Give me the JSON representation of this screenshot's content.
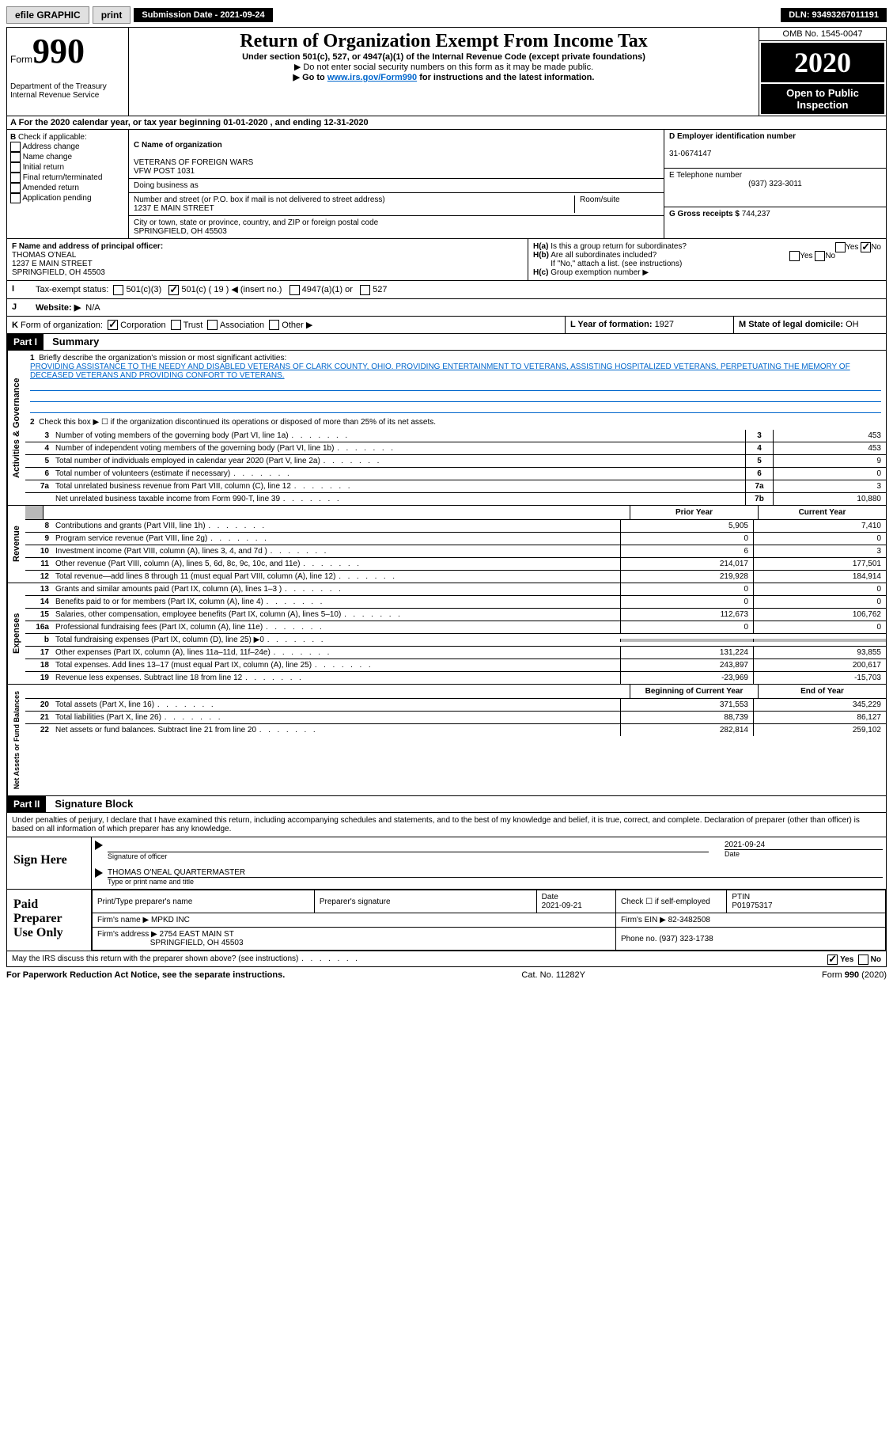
{
  "top_bar": {
    "efile_label": "efile GRAPHIC",
    "print_btn": "print",
    "submission_label": "Submission Date - 2021-09-24",
    "dln": "DLN: 93493267011191"
  },
  "header": {
    "form_label": "Form",
    "form_number": "990",
    "title": "Return of Organization Exempt From Income Tax",
    "subtitle": "Under section 501(c), 527, or 4947(a)(1) of the Internal Revenue Code (except private foundations)",
    "note1": "Do not enter social security numbers on this form as it may be made public.",
    "note2_pre": "Go to ",
    "note2_link": "www.irs.gov/Form990",
    "note2_post": " for instructions and the latest information.",
    "dept": "Department of the Treasury\nInternal Revenue Service",
    "omb": "OMB No. 1545-0047",
    "year": "2020",
    "inspect": "Open to Public Inspection"
  },
  "line_a": "For the 2020 calendar year, or tax year beginning 01-01-2020    , and ending 12-31-2020",
  "section_b": {
    "label": "Check if applicable:",
    "opts": [
      "Address change",
      "Name change",
      "Initial return",
      "Final return/terminated",
      "Amended return",
      "Application pending"
    ]
  },
  "section_c": {
    "name_label": "C Name of organization",
    "name": "VETERANS OF FOREIGN WARS\nVFW POST 1031",
    "dba_label": "Doing business as",
    "addr_label": "Number and street (or P.O. box if mail is not delivered to street address)",
    "room_label": "Room/suite",
    "addr": "1237 E MAIN STREET",
    "city_label": "City or town, state or province, country, and ZIP or foreign postal code",
    "city": "SPRINGFIELD, OH  45503"
  },
  "section_d": {
    "ein_label": "D Employer identification number",
    "ein": "31-0674147",
    "tel_label": "E Telephone number",
    "tel": "(937) 323-3011",
    "gross_label": "G Gross receipts $",
    "gross": "744,237"
  },
  "section_f": {
    "label": "F  Name and address of principal officer:",
    "name": "THOMAS O'NEAL",
    "addr1": "1237 E MAIN STREET",
    "addr2": "SPRINGFIELD, OH  45503"
  },
  "section_h": {
    "ha_label": "Is this a group return for subordinates?",
    "hb_label": "Are all subordinates included?",
    "hb_note": "If \"No,\" attach a list. (see instructions)",
    "hc_label": "Group exemption number ▶",
    "ha_ans": "No"
  },
  "line_i": {
    "label": "Tax-exempt status:",
    "opts": [
      "501(c)(3)",
      "501(c) ( 19 ) ◀ (insert no.)",
      "4947(a)(1) or",
      "527"
    ]
  },
  "line_j": {
    "label": "Website: ▶",
    "val": "N/A"
  },
  "line_k": {
    "label": "Form of organization:",
    "opts": [
      "Corporation",
      "Trust",
      "Association",
      "Other ▶"
    ]
  },
  "line_lm": {
    "l_label": "L Year of formation: ",
    "l_val": "1927",
    "m_label": "M State of legal domicile: ",
    "m_val": "OH"
  },
  "part1": {
    "header": "Part I",
    "title": "Summary",
    "q1": "Briefly describe the organization's mission or most significant activities:",
    "mission": "PROVIDING ASSISTANCE TO THE NEEDY AND DISABLED VETERANS OF CLARK COUNTY, OHIO. PROVIDING ENTERTAINMENT TO VETERANS, ASSISTING HOSPITALIZED VETERANS, PERPETUATING THE MEMORY OF DECEASED VETERANS AND PROVIDING CONFORT TO VETERANS.",
    "q2": "Check this box ▶ ☐  if the organization discontinued its operations or disposed of more than 25% of its net assets.",
    "side_gov": "Activities & Governance",
    "side_rev": "Revenue",
    "side_exp": "Expenses",
    "side_net": "Net Assets or Fund Balances",
    "prior_year": "Prior Year",
    "current_year": "Current Year",
    "begin_year": "Beginning of Current Year",
    "end_year": "End of Year",
    "rows_gov": [
      {
        "n": "3",
        "d": "Number of voting members of the governing body (Part VI, line 1a)",
        "bn": "3",
        "v": "453"
      },
      {
        "n": "4",
        "d": "Number of independent voting members of the governing body (Part VI, line 1b)",
        "bn": "4",
        "v": "453"
      },
      {
        "n": "5",
        "d": "Total number of individuals employed in calendar year 2020 (Part V, line 2a)",
        "bn": "5",
        "v": "9"
      },
      {
        "n": "6",
        "d": "Total number of volunteers (estimate if necessary)",
        "bn": "6",
        "v": "0"
      },
      {
        "n": "7a",
        "d": "Total unrelated business revenue from Part VIII, column (C), line 12",
        "bn": "7a",
        "v": "3"
      },
      {
        "n": "",
        "d": "Net unrelated business taxable income from Form 990-T, line 39",
        "bn": "7b",
        "v": "10,880"
      }
    ],
    "rows_rev": [
      {
        "n": "8",
        "d": "Contributions and grants (Part VIII, line 1h)",
        "py": "5,905",
        "cy": "7,410"
      },
      {
        "n": "9",
        "d": "Program service revenue (Part VIII, line 2g)",
        "py": "0",
        "cy": "0"
      },
      {
        "n": "10",
        "d": "Investment income (Part VIII, column (A), lines 3, 4, and 7d )",
        "py": "6",
        "cy": "3"
      },
      {
        "n": "11",
        "d": "Other revenue (Part VIII, column (A), lines 5, 6d, 8c, 9c, 10c, and 11e)",
        "py": "214,017",
        "cy": "177,501"
      },
      {
        "n": "12",
        "d": "Total revenue—add lines 8 through 11 (must equal Part VIII, column (A), line 12)",
        "py": "219,928",
        "cy": "184,914"
      }
    ],
    "rows_exp": [
      {
        "n": "13",
        "d": "Grants and similar amounts paid (Part IX, column (A), lines 1–3 )",
        "py": "0",
        "cy": "0"
      },
      {
        "n": "14",
        "d": "Benefits paid to or for members (Part IX, column (A), line 4)",
        "py": "0",
        "cy": "0"
      },
      {
        "n": "15",
        "d": "Salaries, other compensation, employee benefits (Part IX, column (A), lines 5–10)",
        "py": "112,673",
        "cy": "106,762"
      },
      {
        "n": "16a",
        "d": "Professional fundraising fees (Part IX, column (A), line 11e)",
        "py": "0",
        "cy": "0"
      },
      {
        "n": "b",
        "d": "Total fundraising expenses (Part IX, column (D), line 25) ▶0",
        "py": "",
        "cy": "",
        "grey": true
      },
      {
        "n": "17",
        "d": "Other expenses (Part IX, column (A), lines 11a–11d, 11f–24e)",
        "py": "131,224",
        "cy": "93,855"
      },
      {
        "n": "18",
        "d": "Total expenses. Add lines 13–17 (must equal Part IX, column (A), line 25)",
        "py": "243,897",
        "cy": "200,617"
      },
      {
        "n": "19",
        "d": "Revenue less expenses. Subtract line 18 from line 12",
        "py": "-23,969",
        "cy": "-15,703"
      }
    ],
    "rows_net": [
      {
        "n": "20",
        "d": "Total assets (Part X, line 16)",
        "py": "371,553",
        "cy": "345,229"
      },
      {
        "n": "21",
        "d": "Total liabilities (Part X, line 26)",
        "py": "88,739",
        "cy": "86,127"
      },
      {
        "n": "22",
        "d": "Net assets or fund balances. Subtract line 21 from line 20",
        "py": "282,814",
        "cy": "259,102"
      }
    ]
  },
  "part2": {
    "header": "Part II",
    "title": "Signature Block",
    "decl": "Under penalties of perjury, I declare that I have examined this return, including accompanying schedules and statements, and to the best of my knowledge and belief, it is true, correct, and complete. Declaration of preparer (other than officer) is based on all information of which preparer has any knowledge.",
    "sign_here": "Sign Here",
    "sig_officer": "Signature of officer",
    "sig_date": "2021-09-24",
    "date_lbl": "Date",
    "officer_name": "THOMAS O'NEAL QUARTERMASTER",
    "name_title_lbl": "Type or print name and title",
    "paid_label": "Paid Preparer Use Only",
    "prep_name_lbl": "Print/Type preparer's name",
    "prep_sig_lbl": "Preparer's signature",
    "prep_date_lbl": "Date",
    "prep_date": "2021-09-21",
    "self_emp_lbl": "Check ☐ if self-employed",
    "ptin_lbl": "PTIN",
    "ptin": "P01975317",
    "firm_name_lbl": "Firm's name    ▶",
    "firm_name": "MPKD INC",
    "firm_ein_lbl": "Firm's EIN ▶",
    "firm_ein": "82-3482508",
    "firm_addr_lbl": "Firm's address ▶",
    "firm_addr": "2754 EAST MAIN ST",
    "firm_city": "SPRINGFIELD, OH  45503",
    "phone_lbl": "Phone no.",
    "phone": "(937) 323-1738",
    "may_irs": "May the IRS discuss this return with the preparer shown above? (see instructions)",
    "may_ans": "Yes"
  },
  "footer": {
    "paperwork": "For Paperwork Reduction Act Notice, see the separate instructions.",
    "cat": "Cat. No. 11282Y",
    "form": "Form 990 (2020)"
  }
}
